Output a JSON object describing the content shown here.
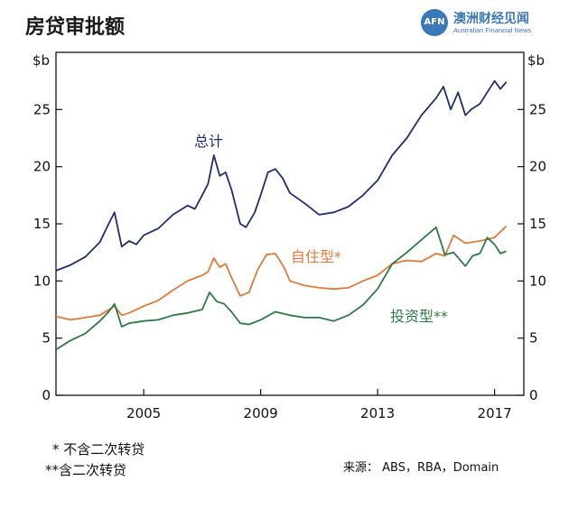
{
  "header": {
    "title": "房贷审批额"
  },
  "logo": {
    "badge": "AFN",
    "name": "澳洲财经见闻",
    "tagline": "Australian Financial News"
  },
  "notes": {
    "note1": "* 不含二次转贷",
    "note2": "**含二次转贷"
  },
  "source": "来源： ABS，RBA，Domain",
  "chart_data": {
    "type": "line",
    "title": "房贷审批额",
    "ylabel": "$b",
    "ylim": [
      0,
      30
    ],
    "xlim": [
      2002.0,
      2018.0
    ],
    "x_ticks": [
      "2005",
      "2009",
      "2013",
      "2017"
    ],
    "y_ticks": [
      "0",
      "5",
      "10",
      "15",
      "20",
      "25"
    ],
    "grid": false,
    "series": [
      {
        "name": "总计",
        "color": "#1f2f6e",
        "points": [
          [
            2002.0,
            10.9
          ],
          [
            2002.5,
            11.4
          ],
          [
            2003.0,
            12.1
          ],
          [
            2003.5,
            13.4
          ],
          [
            2003.8,
            15.0
          ],
          [
            2004.0,
            16.0
          ],
          [
            2004.25,
            13.0
          ],
          [
            2004.5,
            13.5
          ],
          [
            2004.75,
            13.2
          ],
          [
            2005.0,
            14.0
          ],
          [
            2005.5,
            14.6
          ],
          [
            2006.0,
            15.8
          ],
          [
            2006.5,
            16.6
          ],
          [
            2006.75,
            16.3
          ],
          [
            2007.0,
            17.5
          ],
          [
            2007.2,
            18.5
          ],
          [
            2007.4,
            21.0
          ],
          [
            2007.6,
            19.2
          ],
          [
            2007.8,
            19.5
          ],
          [
            2008.0,
            18.0
          ],
          [
            2008.3,
            15.0
          ],
          [
            2008.5,
            14.7
          ],
          [
            2008.8,
            16.0
          ],
          [
            2009.0,
            17.5
          ],
          [
            2009.25,
            19.5
          ],
          [
            2009.5,
            19.8
          ],
          [
            2009.75,
            19.0
          ],
          [
            2010.0,
            17.7
          ],
          [
            2010.5,
            16.8
          ],
          [
            2011.0,
            15.8
          ],
          [
            2011.5,
            16.0
          ],
          [
            2012.0,
            16.5
          ],
          [
            2012.5,
            17.5
          ],
          [
            2013.0,
            18.8
          ],
          [
            2013.5,
            21.0
          ],
          [
            2014.0,
            22.5
          ],
          [
            2014.5,
            24.5
          ],
          [
            2015.0,
            26.0
          ],
          [
            2015.25,
            27.0
          ],
          [
            2015.5,
            25.0
          ],
          [
            2015.75,
            26.5
          ],
          [
            2016.0,
            24.5
          ],
          [
            2016.2,
            25.0
          ],
          [
            2016.5,
            25.5
          ],
          [
            2016.75,
            26.5
          ],
          [
            2017.0,
            27.5
          ],
          [
            2017.2,
            26.8
          ],
          [
            2017.4,
            27.4
          ]
        ]
      },
      {
        "name": "自住型*",
        "color": "#e07a3a",
        "points": [
          [
            2002.0,
            6.9
          ],
          [
            2002.5,
            6.6
          ],
          [
            2003.0,
            6.8
          ],
          [
            2003.5,
            7.0
          ],
          [
            2004.0,
            7.8
          ],
          [
            2004.25,
            7.0
          ],
          [
            2004.5,
            7.2
          ],
          [
            2005.0,
            7.8
          ],
          [
            2005.5,
            8.3
          ],
          [
            2006.0,
            9.2
          ],
          [
            2006.5,
            10.0
          ],
          [
            2007.0,
            10.5
          ],
          [
            2007.2,
            10.8
          ],
          [
            2007.4,
            12.0
          ],
          [
            2007.6,
            11.2
          ],
          [
            2007.8,
            11.5
          ],
          [
            2008.0,
            10.3
          ],
          [
            2008.3,
            8.7
          ],
          [
            2008.6,
            9.0
          ],
          [
            2008.9,
            11.0
          ],
          [
            2009.2,
            12.3
          ],
          [
            2009.5,
            12.4
          ],
          [
            2009.8,
            11.2
          ],
          [
            2010.0,
            10.0
          ],
          [
            2010.5,
            9.6
          ],
          [
            2011.0,
            9.4
          ],
          [
            2011.5,
            9.3
          ],
          [
            2012.0,
            9.4
          ],
          [
            2012.5,
            10.0
          ],
          [
            2013.0,
            10.5
          ],
          [
            2013.5,
            11.5
          ],
          [
            2014.0,
            11.8
          ],
          [
            2014.5,
            11.7
          ],
          [
            2015.0,
            12.4
          ],
          [
            2015.3,
            12.2
          ],
          [
            2015.6,
            14.0
          ],
          [
            2016.0,
            13.3
          ],
          [
            2016.5,
            13.5
          ],
          [
            2017.0,
            13.8
          ],
          [
            2017.4,
            14.8
          ]
        ]
      },
      {
        "name": "投资型**",
        "color": "#2e7a46",
        "points": [
          [
            2002.0,
            4.0
          ],
          [
            2002.5,
            4.8
          ],
          [
            2003.0,
            5.4
          ],
          [
            2003.5,
            6.5
          ],
          [
            2003.8,
            7.3
          ],
          [
            2004.0,
            8.0
          ],
          [
            2004.25,
            6.0
          ],
          [
            2004.5,
            6.3
          ],
          [
            2005.0,
            6.5
          ],
          [
            2005.5,
            6.6
          ],
          [
            2006.0,
            7.0
          ],
          [
            2006.5,
            7.2
          ],
          [
            2007.0,
            7.5
          ],
          [
            2007.25,
            9.0
          ],
          [
            2007.5,
            8.2
          ],
          [
            2007.75,
            8.0
          ],
          [
            2008.0,
            7.3
          ],
          [
            2008.3,
            6.3
          ],
          [
            2008.6,
            6.2
          ],
          [
            2009.0,
            6.6
          ],
          [
            2009.5,
            7.3
          ],
          [
            2010.0,
            7.0
          ],
          [
            2010.5,
            6.8
          ],
          [
            2011.0,
            6.8
          ],
          [
            2011.5,
            6.5
          ],
          [
            2012.0,
            7.0
          ],
          [
            2012.5,
            7.9
          ],
          [
            2013.0,
            9.3
          ],
          [
            2013.5,
            11.5
          ],
          [
            2014.0,
            12.5
          ],
          [
            2014.5,
            13.6
          ],
          [
            2015.0,
            14.7
          ],
          [
            2015.3,
            12.3
          ],
          [
            2015.6,
            12.5
          ],
          [
            2016.0,
            11.3
          ],
          [
            2016.25,
            12.2
          ],
          [
            2016.5,
            12.4
          ],
          [
            2016.75,
            13.8
          ],
          [
            2017.0,
            13.2
          ],
          [
            2017.2,
            12.4
          ],
          [
            2017.4,
            12.6
          ]
        ]
      }
    ]
  }
}
